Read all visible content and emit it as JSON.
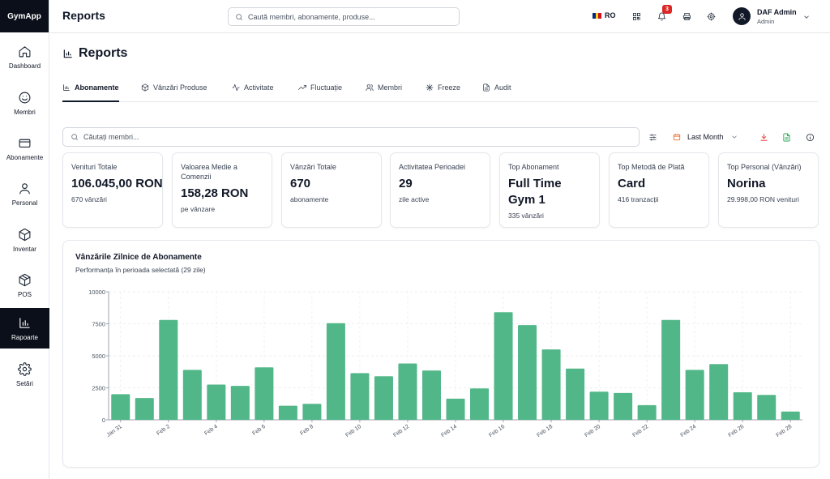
{
  "brand": "GymApp",
  "sidebar": {
    "items": [
      {
        "label": "Dashboard",
        "icon": "home-icon"
      },
      {
        "label": "Membri",
        "icon": "smile-icon"
      },
      {
        "label": "Abonamente",
        "icon": "card-icon"
      },
      {
        "label": "Personal",
        "icon": "user-icon"
      },
      {
        "label": "Inventar",
        "icon": "box-icon"
      },
      {
        "label": "POS",
        "icon": "package-icon"
      },
      {
        "label": "Rapoarte",
        "icon": "bar-chart-icon",
        "active": true
      },
      {
        "label": "Setări",
        "icon": "gear-icon"
      }
    ]
  },
  "header": {
    "title": "Reports",
    "search_placeholder": "Caută membri, abonamente, produse...",
    "language": "RO",
    "notifications_count": "3",
    "user_name": "DAF Admin",
    "user_role": "Admin"
  },
  "page": {
    "title": "Reports",
    "tabs": [
      "Abonamente",
      "Vânzări Produse",
      "Activitate",
      "Fluctuație",
      "Membri",
      "Freeze",
      "Audit"
    ],
    "active_tab": "Abonamente",
    "search_placeholder": "Căutați membri...",
    "period": "Last Month"
  },
  "cards": [
    {
      "label": "Venituri Totale",
      "value": "106.045,00 RON",
      "sub": "670 vânzări"
    },
    {
      "label": "Valoarea Medie a Comenzii",
      "value": "158,28 RON",
      "sub": "pe vânzare"
    },
    {
      "label": "Vânzări Totale",
      "value": "670",
      "sub": "abonamente"
    },
    {
      "label": "Activitatea Perioadei",
      "value": "29",
      "sub": "zile active"
    },
    {
      "label": "Top Abonament",
      "value": "Full Time Gym 1",
      "sub": "335 vânzări"
    },
    {
      "label": "Top Metodă de Plată",
      "value": "Card",
      "sub": "416 tranzacții"
    },
    {
      "label": "Top Personal (Vânzări)",
      "value": "Norina",
      "sub": "29.998,00 RON venituri"
    }
  ],
  "chart_section": {
    "title": "Vânzările Zilnice de Abonamente",
    "subtitle": "Performanța în perioada selectată (29 zile)"
  },
  "colors": {
    "bar": "#52b788",
    "accent_dark": "#0b0f19",
    "notification": "#dc2626",
    "download": "#dc2626",
    "export": "#16a34a",
    "calendar": "#ea580c"
  },
  "chart_data": {
    "type": "bar",
    "categories": [
      "Jan 31",
      "Feb 1",
      "Feb 2",
      "Feb 3",
      "Feb 4",
      "Feb 5",
      "Feb 6",
      "Feb 7",
      "Feb 8",
      "Feb 9",
      "Feb 10",
      "Feb 11",
      "Feb 12",
      "Feb 13",
      "Feb 14",
      "Feb 15",
      "Feb 16",
      "Feb 17",
      "Feb 18",
      "Feb 19",
      "Feb 20",
      "Feb 21",
      "Feb 22",
      "Feb 23",
      "Feb 24",
      "Feb 25",
      "Feb 26",
      "Feb 27",
      "Feb 28"
    ],
    "tick_labels": [
      "Jan 31",
      "Feb 2",
      "Feb 4",
      "Feb 6",
      "Feb 8",
      "Feb 10",
      "Feb 12",
      "Feb 14",
      "Feb 16",
      "Feb 18",
      "Feb 20",
      "Feb 22",
      "Feb 24",
      "Feb 26",
      "Feb 28"
    ],
    "values": [
      2000,
      1700,
      7800,
      3900,
      2750,
      2650,
      4100,
      1100,
      1250,
      7550,
      3650,
      3400,
      4400,
      3850,
      1650,
      2450,
      8400,
      7400,
      5500,
      4000,
      2200,
      2100,
      1150,
      7800,
      3900,
      4350,
      2150,
      1950,
      650
    ],
    "ylim": [
      0,
      10000
    ],
    "yticks": [
      0,
      2500,
      5000,
      7500,
      10000
    ],
    "grid": true
  }
}
